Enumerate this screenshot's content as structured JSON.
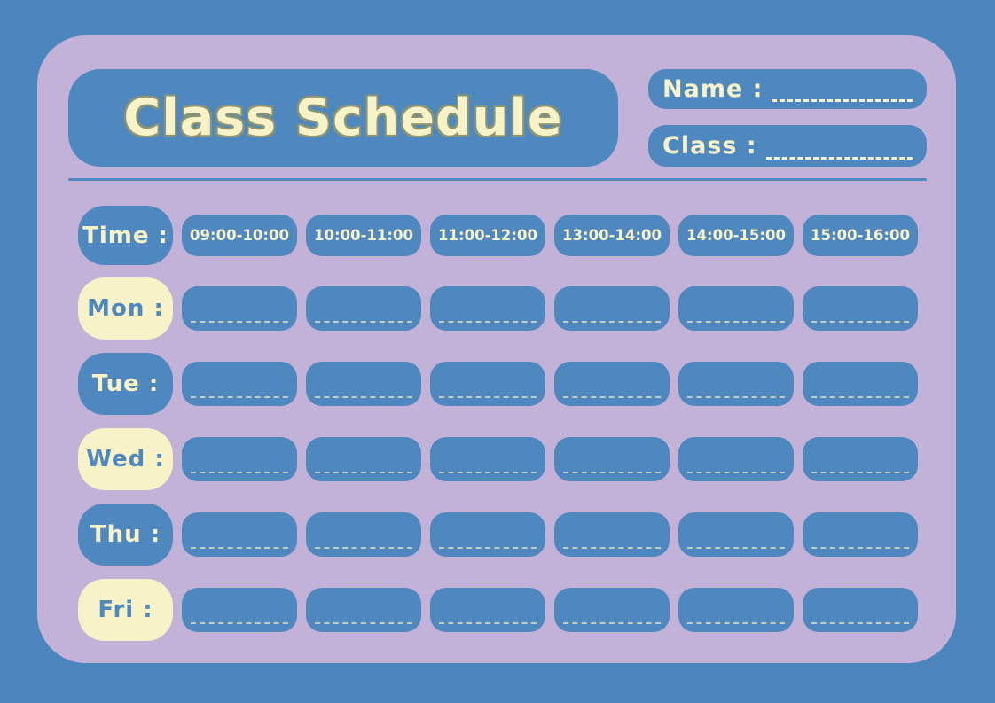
{
  "colors": {
    "background_blue": "#4c86bd",
    "card_purple": "#c2b2d8",
    "pill_blue": "#4f88be",
    "cream": "#f7f2c8",
    "title_outline_olive": "#8d9470",
    "cell_dash": "#d6dac3"
  },
  "header": {
    "title": "Class Schedule",
    "name_label": "Name :",
    "name_value": "",
    "class_label": "Class :",
    "class_value": ""
  },
  "schedule": {
    "time_label": "Time :",
    "time_slots": [
      "09:00-10:00",
      "10:00-11:00",
      "11:00-12:00",
      "13:00-14:00",
      "14:00-15:00",
      "15:00-16:00"
    ],
    "days": [
      {
        "label": "Mon :",
        "entries": [
          "",
          "",
          "",
          "",
          "",
          ""
        ]
      },
      {
        "label": "Tue :",
        "entries": [
          "",
          "",
          "",
          "",
          "",
          ""
        ]
      },
      {
        "label": "Wed :",
        "entries": [
          "",
          "",
          "",
          "",
          "",
          ""
        ]
      },
      {
        "label": "Thu :",
        "entries": [
          "",
          "",
          "",
          "",
          "",
          ""
        ]
      },
      {
        "label": "Fri :",
        "entries": [
          "",
          "",
          "",
          "",
          "",
          ""
        ]
      }
    ]
  }
}
